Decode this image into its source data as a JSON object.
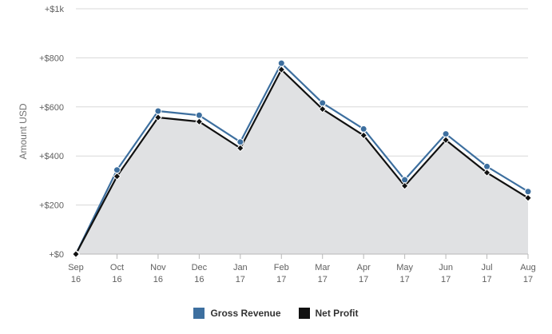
{
  "chart_data": {
    "type": "area",
    "title": "",
    "xlabel": "",
    "ylabel": "Amount USD",
    "categories": [
      [
        "Sep",
        "16"
      ],
      [
        "Oct",
        "16"
      ],
      [
        "Nov",
        "16"
      ],
      [
        "Dec",
        "16"
      ],
      [
        "Jan",
        "17"
      ],
      [
        "Feb",
        "17"
      ],
      [
        "Mar",
        "17"
      ],
      [
        "Apr",
        "17"
      ],
      [
        "May",
        "17"
      ],
      [
        "Jun",
        "17"
      ],
      [
        "Jul",
        "17"
      ],
      [
        "Aug",
        "17"
      ]
    ],
    "ylim": [
      0,
      1000
    ],
    "yticks": [
      {
        "value": 0,
        "label": "+$0"
      },
      {
        "value": 200,
        "label": "+$200"
      },
      {
        "value": 400,
        "label": "+$400"
      },
      {
        "value": 600,
        "label": "+$600"
      },
      {
        "value": 800,
        "label": "+$800"
      },
      {
        "value": 1000,
        "label": "+$1k"
      }
    ],
    "grid": true,
    "legend_position": "bottom-center",
    "series": [
      {
        "name": "Gross Revenue",
        "color": "#3d6f9f",
        "marker": "circle",
        "values": [
          0,
          343,
          583,
          566,
          457,
          778,
          616,
          510,
          303,
          490,
          357,
          255
        ]
      },
      {
        "name": "Net Profit",
        "color": "#111111",
        "marker": "diamond",
        "fill": "#e0e1e3",
        "values": [
          0,
          317,
          557,
          540,
          432,
          752,
          591,
          484,
          278,
          465,
          332,
          229
        ]
      }
    ]
  },
  "legend": {
    "items": [
      {
        "label": "Gross Revenue",
        "color": "#3d6f9f"
      },
      {
        "label": "Net Profit",
        "color": "#111111"
      }
    ]
  }
}
